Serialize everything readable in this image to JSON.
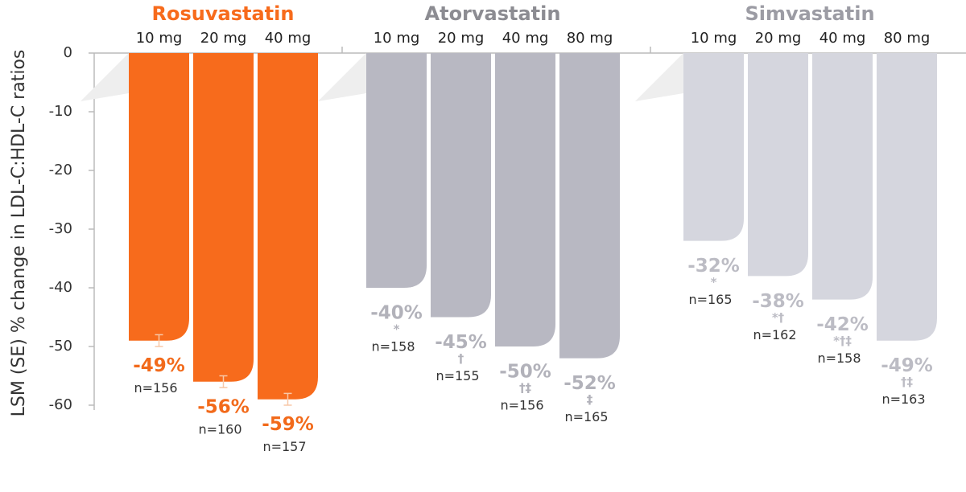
{
  "chart_data": {
    "type": "bar",
    "y_label": "LSM (SE) % change in LDL-C:HDL-C ratios",
    "ylim": [
      -60,
      0
    ],
    "yticks": [
      0,
      -10,
      -20,
      -30,
      -40,
      -50,
      -60
    ],
    "groups": [
      {
        "name": "Rosuvastatin",
        "color": "#f76b1c",
        "title_color": "#f76b1c",
        "label_color": "#f26a1b",
        "categories": [
          "10 mg",
          "20 mg",
          "40 mg"
        ],
        "values": [
          -49,
          -56,
          -59
        ],
        "value_labels": [
          "-49%",
          "-56%",
          "-59%"
        ],
        "errors": [
          1,
          1,
          1
        ],
        "n_labels": [
          "n=156",
          "n=160",
          "n=157"
        ]
      },
      {
        "name": "Atorvastatin",
        "color": "#b8b8c2",
        "title_color": "#8c8c92",
        "label_color": "#b2b2ba",
        "categories": [
          "10 mg",
          "20 mg",
          "40 mg",
          "80 mg"
        ],
        "values": [
          -40,
          -45,
          -50,
          -52
        ],
        "value_labels": [
          "-40%",
          "-45%",
          "-50%",
          "-52%"
        ],
        "symbols": [
          "*",
          "†",
          "†‡",
          "‡"
        ],
        "n_labels": [
          "n=158",
          "n=155",
          "n=156",
          "n=165"
        ]
      },
      {
        "name": "Simvastatin",
        "color": "#d5d6de",
        "title_color": "#9c9ca4",
        "label_color": "#bcbcc4",
        "categories": [
          "10 mg",
          "20 mg",
          "40 mg",
          "80 mg"
        ],
        "values": [
          -32,
          -38,
          -42,
          -49
        ],
        "value_labels": [
          "-32%",
          "-38%",
          "-42%",
          "-49%"
        ],
        "symbols": [
          "*",
          "*†",
          "*†‡",
          "†‡"
        ],
        "n_labels": [
          "n=165",
          "n=162",
          "n=158",
          "n=163"
        ]
      }
    ]
  }
}
